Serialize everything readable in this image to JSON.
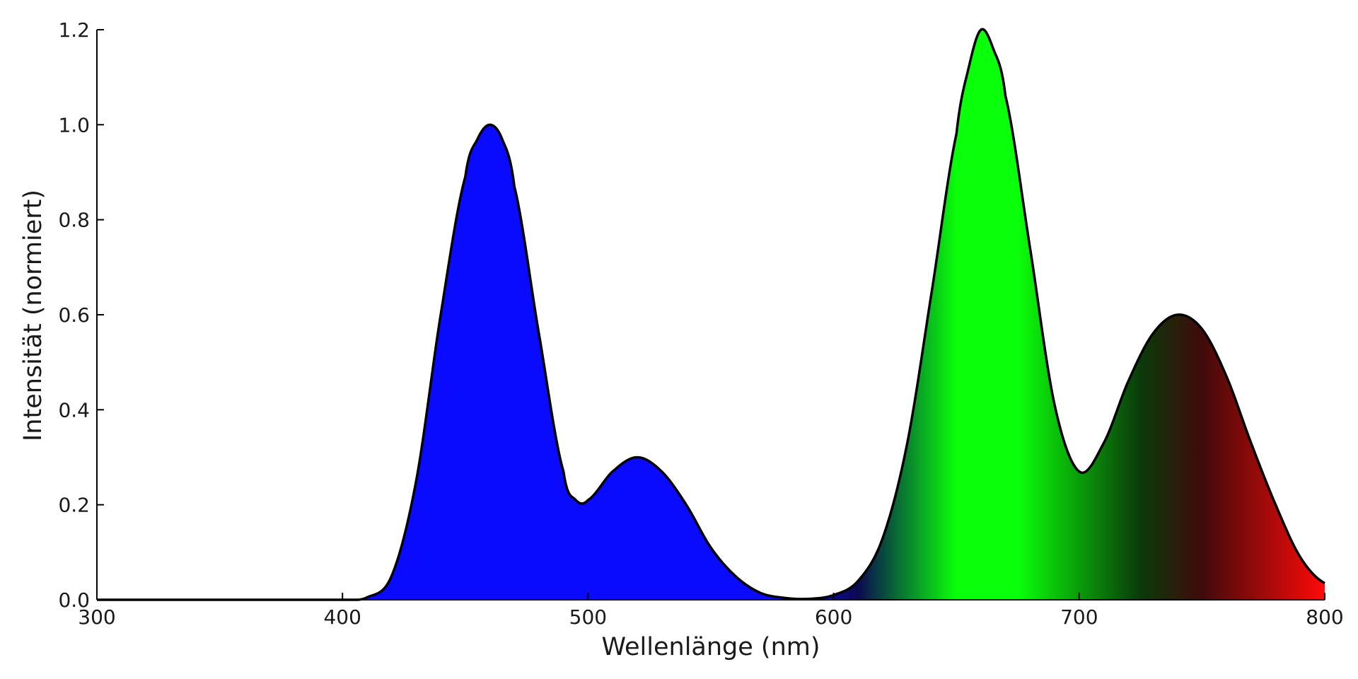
{
  "chart_data": {
    "type": "area",
    "title": "",
    "xlabel": "Wellenlänge (nm)",
    "ylabel": "Intensität (normiert)",
    "xlim": [
      300,
      800
    ],
    "ylim": [
      0,
      1.2
    ],
    "x_ticks": [
      300,
      400,
      500,
      600,
      700,
      800
    ],
    "x_tick_labels": [
      "300",
      "400",
      "500",
      "600",
      "700",
      "800"
    ],
    "y_ticks": [
      0,
      0.2,
      0.4,
      0.6,
      0.8,
      1.0,
      1.2
    ],
    "y_tick_labels": [
      "0.0",
      "0.2",
      "0.4",
      "0.6",
      "0.8",
      "1.0",
      "1.2"
    ],
    "grid": false,
    "legend": "none",
    "fill": "spectral gradient under curve (blue, green, red, dark red)",
    "line_color": "#000000",
    "series": [
      {
        "x": [
          400,
          410,
          420,
          430,
          440,
          450,
          455,
          460,
          465,
          470,
          480,
          490,
          495,
          500,
          510,
          520,
          530,
          540,
          550,
          560,
          570,
          580,
          590,
          600,
          610,
          620,
          630,
          640,
          650,
          655,
          660,
          665,
          670,
          680,
          690,
          700,
          710,
          720,
          730,
          740,
          750,
          760,
          770,
          780,
          790,
          800
        ],
        "values": [
          0.0,
          0.005,
          0.05,
          0.25,
          0.6,
          0.89,
          0.97,
          1.0,
          0.97,
          0.87,
          0.56,
          0.27,
          0.21,
          0.21,
          0.27,
          0.3,
          0.27,
          0.2,
          0.11,
          0.05,
          0.015,
          0.004,
          0.002,
          0.01,
          0.04,
          0.13,
          0.33,
          0.65,
          0.98,
          1.12,
          1.2,
          1.16,
          1.06,
          0.74,
          0.41,
          0.27,
          0.33,
          0.46,
          0.56,
          0.6,
          0.57,
          0.47,
          0.33,
          0.2,
          0.09,
          0.035
        ]
      }
    ]
  },
  "colors": {
    "blue": "#0a0aff",
    "navy": "#0a0a50",
    "green": "#0aff0a",
    "red": "#ff0a0a",
    "darkred": "#3c0a0a",
    "curve": "#000000",
    "axis": "#000000"
  }
}
